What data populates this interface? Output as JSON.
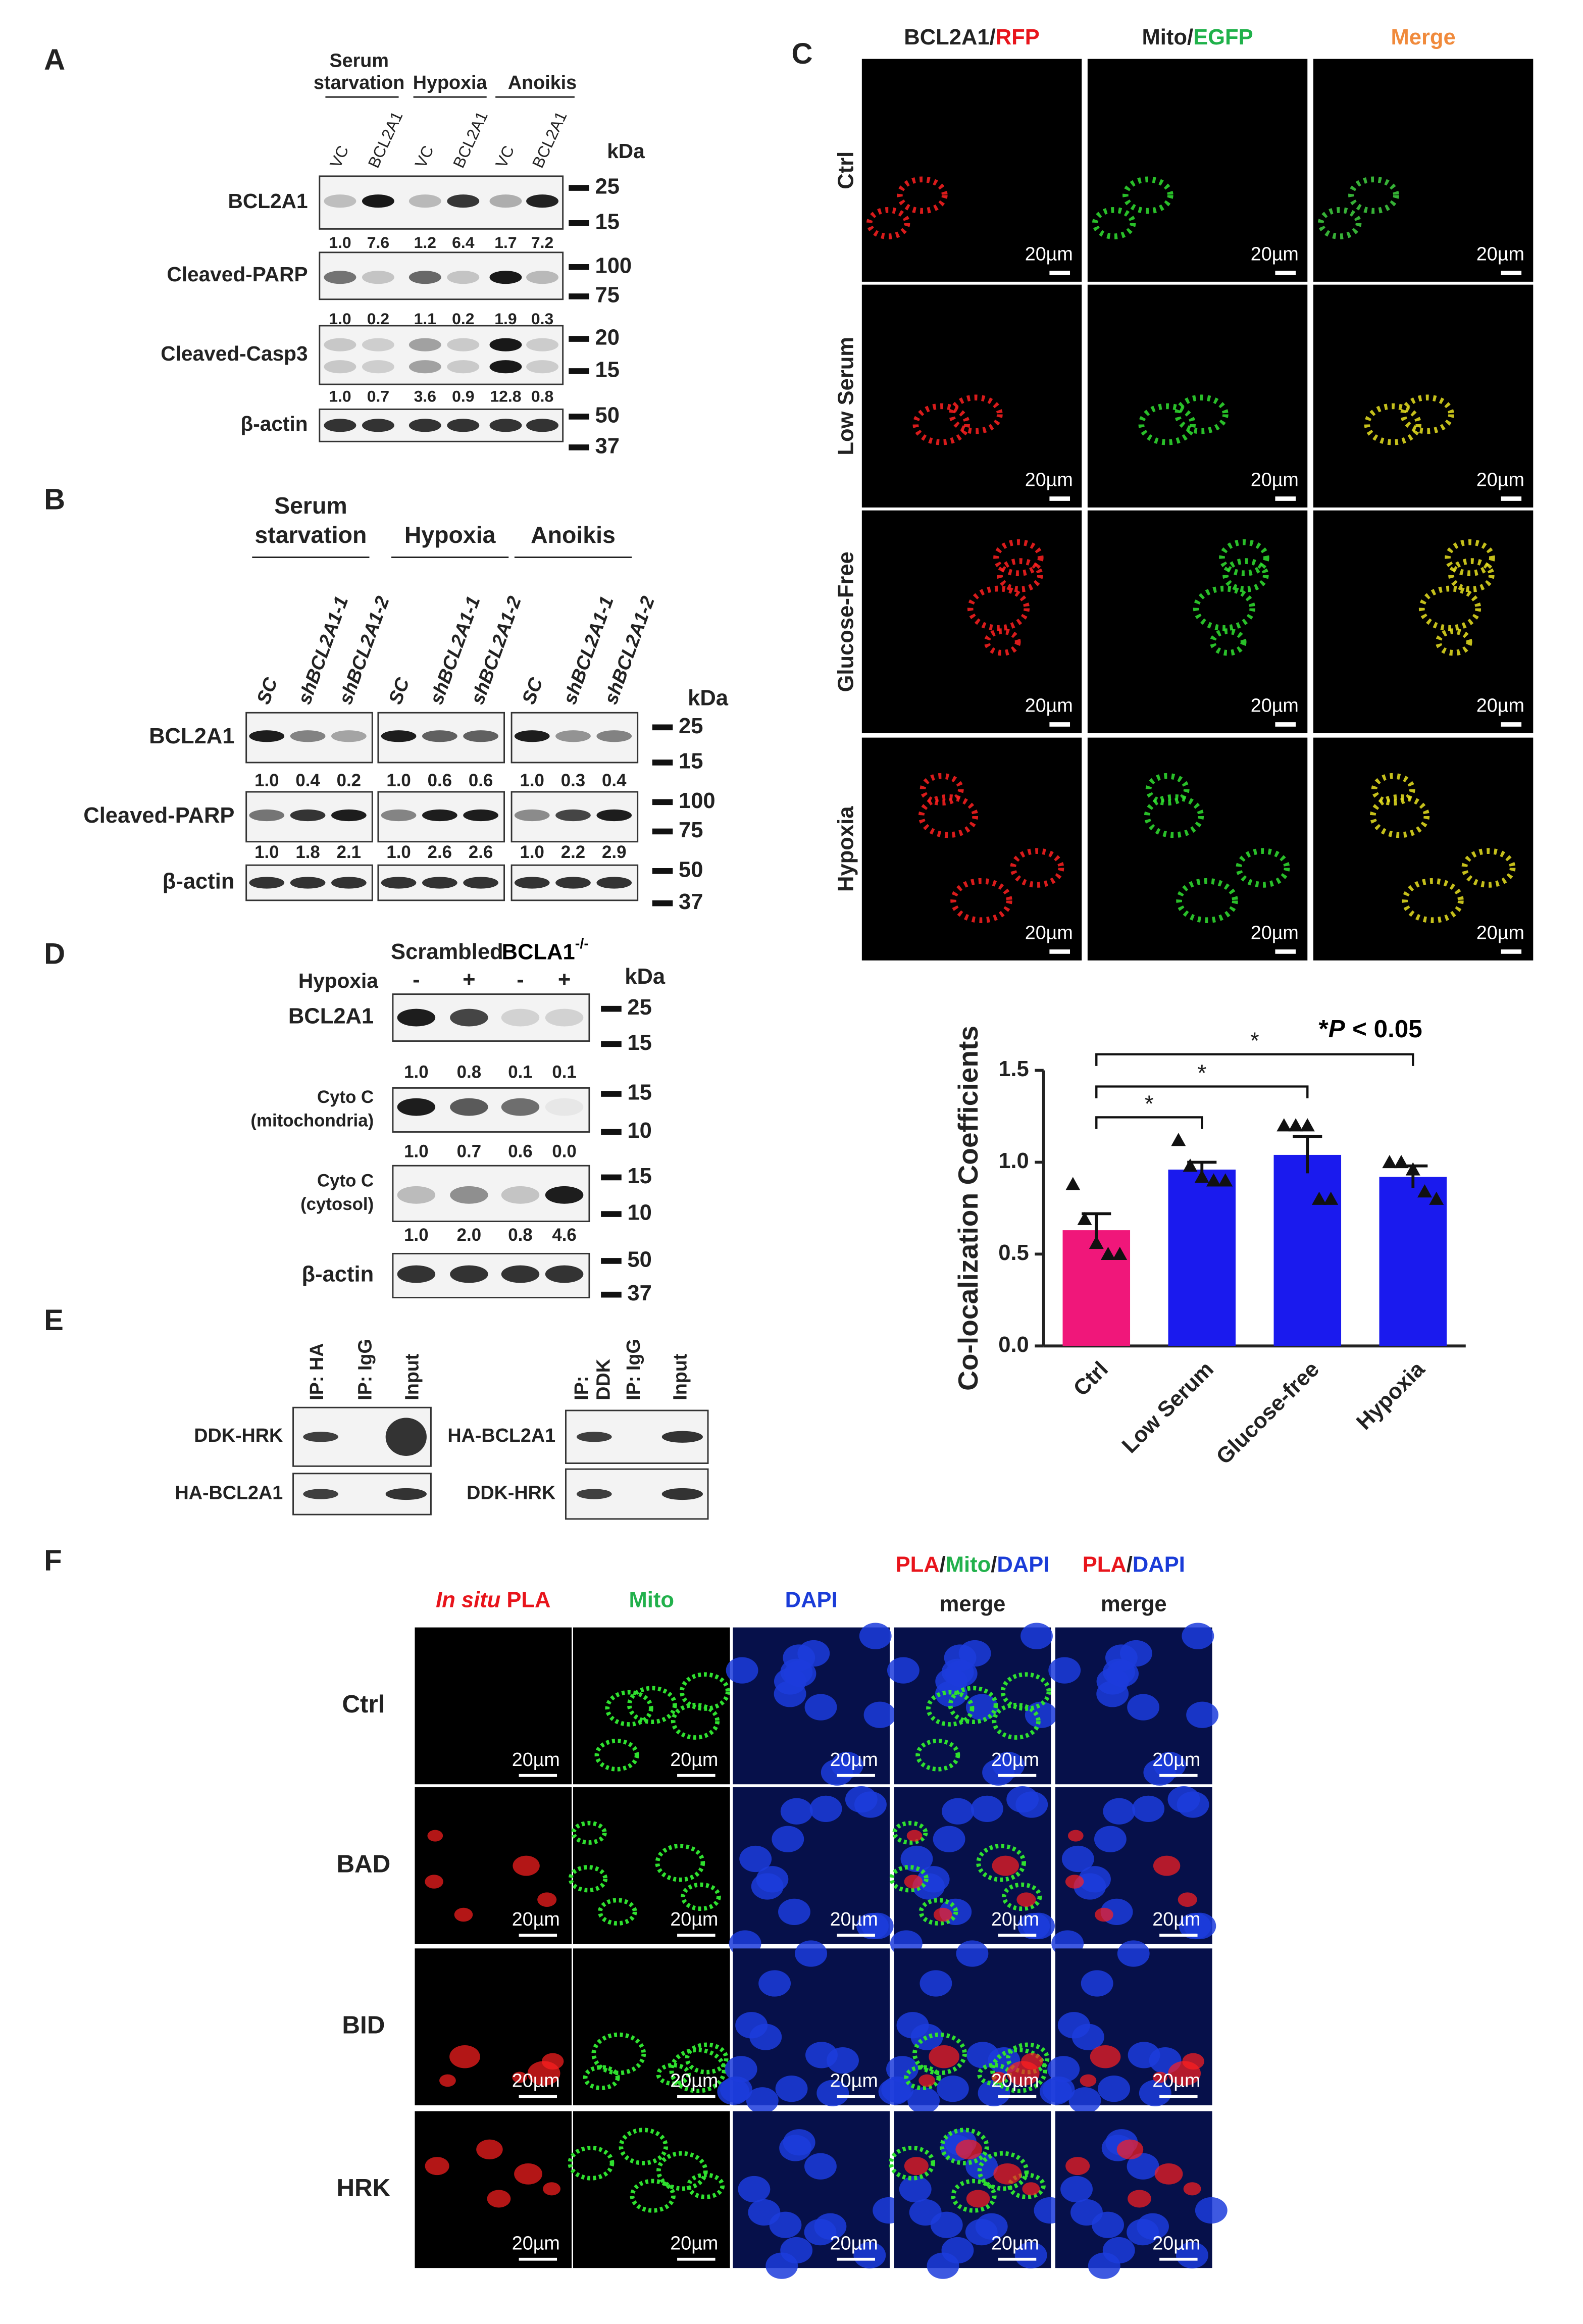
{
  "panel_a": {
    "label": "A",
    "kda": "kDa",
    "groups": [
      {
        "lines": [
          "Serum",
          "starvation"
        ]
      },
      {
        "lines": [
          "Hypoxia"
        ]
      },
      {
        "lines": [
          "Anoikis"
        ]
      }
    ],
    "lanes": [
      "VC",
      "BCL2A1",
      "VC",
      "BCL2A1",
      "VC",
      "BCL2A1"
    ],
    "rows": [
      {
        "name": "BCL2A1",
        "markers": [
          "25",
          "15"
        ],
        "quant": [
          "1.0",
          "7.6",
          "1.2",
          "6.4",
          "1.7",
          "7.2"
        ]
      },
      {
        "name": "Cleaved-PARP",
        "markers": [
          "100",
          "75"
        ],
        "quant": [
          "1.0",
          "0.2",
          "1.1",
          "0.2",
          "1.9",
          "0.3"
        ]
      },
      {
        "name": "Cleaved-Casp3",
        "markers": [
          "20",
          "15"
        ],
        "quant": [
          "1.0",
          "0.7",
          "3.6",
          "0.9",
          "12.8",
          "0.8"
        ]
      },
      {
        "name": "β-actin",
        "markers": [
          "50",
          "37"
        ]
      }
    ]
  },
  "panel_b": {
    "label": "B",
    "kda": "kDa",
    "groups": [
      {
        "lines": [
          "Serum",
          "starvation"
        ],
        "lanes": [
          "SC",
          "shBCL2A1-1",
          "shBCL2A1-2"
        ]
      },
      {
        "lines": [
          "Hypoxia"
        ],
        "lanes": [
          "SC",
          "shBCL2A1-1",
          "shBCL2A1-2"
        ]
      },
      {
        "lines": [
          "Anoikis"
        ],
        "lanes": [
          "SC",
          "shBCL2A1-1",
          "shBCL2A1-2"
        ]
      }
    ],
    "rows": [
      {
        "name": "BCL2A1",
        "markers": [
          "25",
          "15"
        ],
        "quant": [
          [
            "1.0",
            "0.4",
            "0.2"
          ],
          [
            "1.0",
            "0.6",
            "0.6"
          ],
          [
            "1.0",
            "0.3",
            "0.4"
          ]
        ]
      },
      {
        "name": "Cleaved-PARP",
        "markers": [
          "100",
          "75"
        ],
        "quant": [
          [
            "1.0",
            "1.8",
            "2.1"
          ],
          [
            "1.0",
            "2.6",
            "2.6"
          ],
          [
            "1.0",
            "2.2",
            "2.9"
          ]
        ]
      },
      {
        "name": "β-actin",
        "markers": [
          "50",
          "37"
        ]
      }
    ]
  },
  "panel_c": {
    "label": "C",
    "columns": [
      {
        "parts": [
          "BCL2A1",
          "/",
          "RFP"
        ],
        "colors": [
          "#222222",
          "#222222",
          "#e8141b"
        ]
      },
      {
        "parts": [
          "Mito",
          "/",
          "EGFP"
        ],
        "colors": [
          "#222222",
          "#222222",
          "#1fb14a"
        ]
      },
      {
        "parts": [
          "Merge"
        ],
        "colors": [
          "#f08a3c"
        ]
      }
    ],
    "rows": [
      "Ctrl",
      "Low Serum",
      "Glucose-Free",
      "Hypoxia"
    ],
    "scale_bar": "20µm"
  },
  "chart_data": {
    "type": "bar",
    "y_label": "Co-localization Coefficients",
    "categories": [
      "Ctrl",
      "Low Serum",
      "Glucose-free",
      "Hypoxia"
    ],
    "values": [
      0.63,
      0.96,
      1.04,
      0.92
    ],
    "errors": [
      0.09,
      0.04,
      0.1,
      0.06
    ],
    "colors": [
      "#f0177a",
      "#1a1aee",
      "#1a1aee",
      "#1a1aee"
    ],
    "points": [
      [
        0.88,
        0.69,
        0.56,
        0.5,
        0.5
      ],
      [
        1.12,
        0.98,
        0.92,
        0.9,
        0.9
      ],
      [
        1.2,
        1.2,
        1.2,
        0.8,
        0.8
      ],
      [
        1.0,
        1.0,
        0.96,
        0.84,
        0.8
      ]
    ],
    "ylim": [
      0,
      1.5
    ],
    "yticks": [
      {
        "value": 0,
        "label": "0.0"
      },
      0.5,
      {
        "value": 1,
        "label": "1.0"
      },
      1.5
    ],
    "significance": [
      "*",
      "*",
      "*"
    ],
    "annotation": [
      "*",
      "P",
      "< 0.05"
    ]
  },
  "panel_d": {
    "label": "D",
    "kda": "kDa",
    "groups": [
      {
        "name": "Scrambled"
      },
      {
        "name": "BCLA1",
        "sup": "-/-"
      }
    ],
    "treatment": "Hypoxia",
    "lanes": [
      "-",
      "+",
      "-",
      "+"
    ],
    "rows": [
      {
        "name": [
          "BCL2A1"
        ],
        "markers": [
          "25",
          "15"
        ],
        "quant": [
          "1.0",
          "0.8",
          "0.1",
          "0.1"
        ]
      },
      {
        "name": [
          "Cyto C",
          "(mitochondria)"
        ],
        "markers": [
          "15",
          "10"
        ],
        "quant": [
          "1.0",
          "0.7",
          "0.6",
          "0.0"
        ]
      },
      {
        "name": [
          "Cyto C",
          "(cytosol)"
        ],
        "markers": [
          "15",
          "10"
        ],
        "quant": [
          "1.0",
          "2.0",
          "0.8",
          "4.6"
        ]
      },
      {
        "name": [
          "β-actin"
        ],
        "markers": [
          "50",
          "37"
        ]
      }
    ]
  },
  "panel_e": {
    "label": "E",
    "left": {
      "lanes": [
        [
          "IP: HA"
        ],
        [
          "IP: IgG"
        ],
        [
          "Input"
        ]
      ],
      "rows": [
        "DDK-HRK",
        "HA-BCL2A1"
      ]
    },
    "right": {
      "lanes": [
        [
          "IP:",
          "DDK"
        ],
        [
          "IP: IgG"
        ],
        [
          "Input"
        ]
      ],
      "rows": [
        "HA-BCL2A1",
        "DDK-HRK"
      ]
    }
  },
  "panel_f": {
    "label": "F",
    "columns": [
      {
        "parts": [
          "In situ",
          " PLA"
        ],
        "colors": [
          "#e8141b",
          "#e8141b"
        ],
        "italic": [
          true,
          false
        ]
      },
      {
        "parts": [
          "Mito"
        ],
        "colors": [
          "#22b14c"
        ]
      },
      {
        "parts": [
          "DAPI"
        ],
        "colors": [
          "#1a3cd8"
        ]
      },
      {
        "parts": [
          "PLA",
          "/",
          "Mito",
          "/",
          "DAPI"
        ],
        "colors": [
          "#e8141b",
          "#222222",
          "#22b14c",
          "#222222",
          "#1a3cd8"
        ],
        "line2": "merge"
      },
      {
        "parts": [
          "PLA",
          "/",
          "DAPI"
        ],
        "colors": [
          "#e8141b",
          "#222222",
          "#1a3cd8"
        ],
        "line2": "merge"
      }
    ],
    "rows": [
      "Ctrl",
      "BAD",
      "BID",
      "HRK"
    ],
    "scale_bar": "20µm"
  }
}
